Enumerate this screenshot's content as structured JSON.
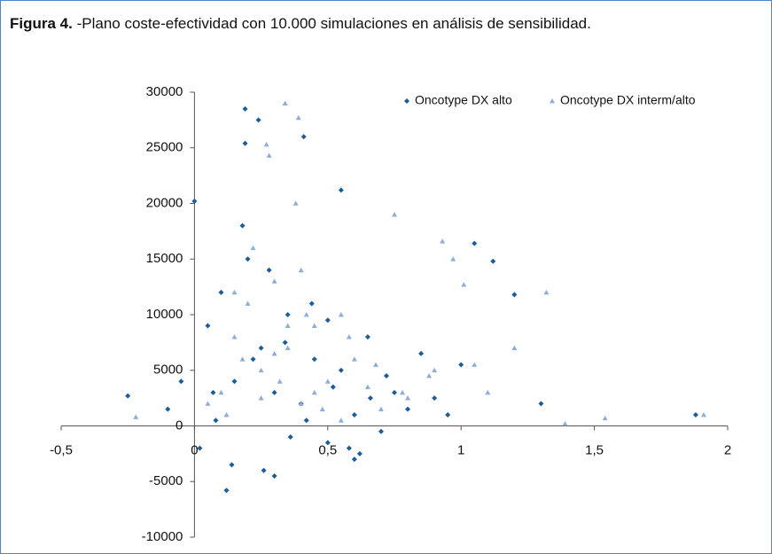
{
  "chart_data": {
    "type": "scatter",
    "title_label": "Figura 4.",
    "title": "-Plano coste-efectividad con 10.000 simulaciones en análisis de sensibilidad.",
    "xlim": [
      -0.5,
      2
    ],
    "ylim": [
      -10000,
      30000
    ],
    "xticks": [
      {
        "value": -0.5,
        "label": "-0,5"
      },
      0,
      {
        "value": 0.5,
        "label": "0,5"
      },
      1,
      {
        "value": 1.5,
        "label": "1,5"
      },
      2
    ],
    "yticks": [
      -10000,
      -5000,
      0,
      5000,
      10000,
      15000,
      20000,
      25000,
      30000
    ],
    "legend": "top-right",
    "series": [
      {
        "name": "Oncotype DX alto",
        "color": "#1b5c9b",
        "marker": "diamond",
        "x": [
          1.88,
          1.2,
          1.05,
          1.12,
          0.19,
          0.24,
          0.41,
          0.19,
          0.0,
          0.55,
          1.3,
          -0.25,
          0.12,
          0.3,
          0.6,
          0.05,
          0.1,
          0.15,
          0.2,
          0.25,
          0.3,
          0.35,
          0.4,
          0.45,
          0.5,
          0.55,
          0.6,
          0.65,
          0.7,
          0.75,
          0.8,
          0.9,
          0.02,
          0.08,
          0.14,
          0.22,
          0.28,
          0.36,
          0.44,
          0.52,
          0.62,
          0.72,
          0.85,
          0.95,
          -0.05,
          -0.1,
          0.18,
          0.26,
          0.34,
          0.42,
          0.5,
          0.58,
          0.66,
          1.0,
          0.07
        ],
        "values": [
          1000,
          11800,
          16400,
          14800,
          28500,
          27500,
          26000,
          25400,
          20200,
          21200,
          2000,
          2700,
          -5800,
          -4500,
          -3000,
          9000,
          12000,
          4000,
          15000,
          7000,
          3000,
          10000,
          2000,
          6000,
          -1500,
          5000,
          1000,
          8000,
          -500,
          3000,
          1500,
          2500,
          -2000,
          500,
          -3500,
          6000,
          14000,
          -1000,
          11000,
          3500,
          -2500,
          4500,
          6500,
          1000,
          4000,
          1500,
          18000,
          -4000,
          7500,
          500,
          9500,
          -2000,
          2500,
          5500,
          3000
        ]
      },
      {
        "name": "Oncotype DX interm/alto",
        "color": "#8eaed6",
        "marker": "triangle",
        "x": [
          1.91,
          1.54,
          1.39,
          1.32,
          0.34,
          0.39,
          0.28,
          0.27,
          0.93,
          0.97,
          1.01,
          0.75,
          -0.22,
          0.1,
          0.15,
          0.2,
          0.25,
          0.3,
          0.35,
          0.4,
          0.45,
          0.5,
          0.55,
          0.6,
          0.65,
          0.7,
          0.8,
          0.9,
          1.1,
          1.2,
          0.05,
          0.12,
          0.18,
          0.22,
          0.32,
          0.38,
          0.42,
          0.48,
          0.58,
          0.68,
          0.78,
          0.88,
          1.05,
          0.15,
          0.25,
          0.35,
          0.45,
          0.55,
          0.3,
          0.4
        ],
        "values": [
          1000,
          700,
          200,
          12000,
          29000,
          27700,
          24300,
          25300,
          16600,
          15000,
          12700,
          19000,
          800,
          3000,
          8000,
          11000,
          5000,
          13000,
          7000,
          2000,
          9000,
          4000,
          10000,
          6000,
          3500,
          1500,
          2500,
          5000,
          3000,
          7000,
          2000,
          1000,
          6000,
          16000,
          4000,
          20000,
          10000,
          1500,
          8000,
          5500,
          3000,
          4500,
          5500,
          12000,
          2500,
          9000,
          3000,
          500,
          6500,
          14000
        ]
      }
    ]
  }
}
